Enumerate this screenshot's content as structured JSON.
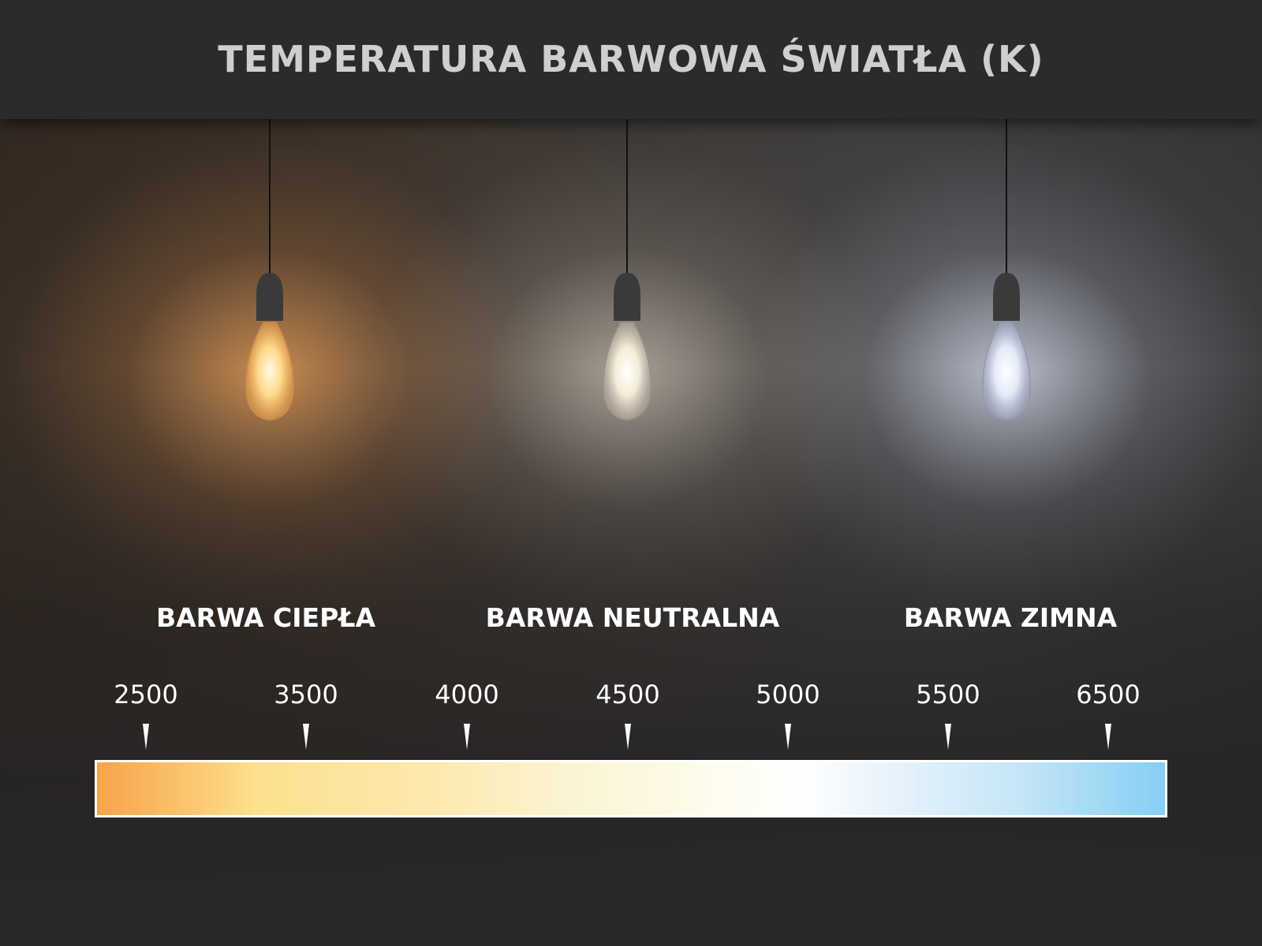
{
  "title": "TEMPERATURA BARWOWA ŚWIATŁA (K)",
  "categories": [
    {
      "label": "BARWA CIEPŁA",
      "glow_color": "#f5aa5f"
    },
    {
      "label": "BARWA NEUTRALNA",
      "glow_color": "#ebe1d2"
    },
    {
      "label": "BARWA ZIMNA",
      "glow_color": "#e1e8fa"
    }
  ],
  "scale": {
    "ticks": [
      "2500",
      "3500",
      "4000",
      "4500",
      "5000",
      "5500",
      "6500"
    ],
    "gradient_colors": [
      "#f6a44a",
      "#fde08e",
      "#ffffff",
      "#86cff3"
    ]
  }
}
